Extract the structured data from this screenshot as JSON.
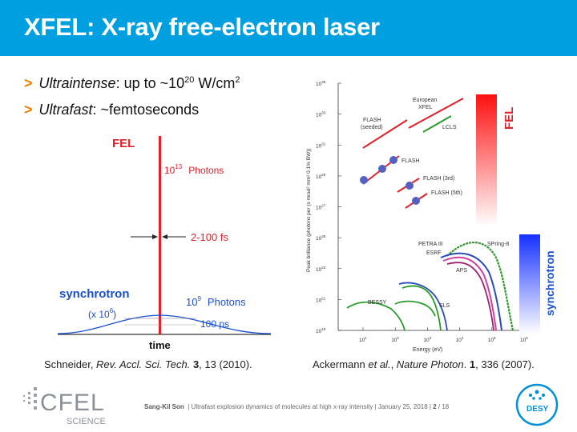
{
  "slide": {
    "title": "XFEL: X-ray free-electron laser",
    "bullets": [
      {
        "term": "Ultraintense",
        "rest_pre": ": up to ~10",
        "exp": "20",
        "rest_post": " W/cm",
        "exp2": "2"
      },
      {
        "term": "Ultrafast",
        "rest_pre": ": ~femtoseconds"
      }
    ],
    "citation_left": {
      "authors": "Schneider, ",
      "journal": "Rev. Accl. Sci. Tech.",
      "volume": " 3",
      "rest": ", 13 (2010)."
    },
    "citation_right": {
      "authors": "Ackermann ",
      "etal": "et al.",
      "sep": ", ",
      "journal": "Nature Photon",
      "rest": ". ",
      "volume": "1",
      "rest2": ", 336 (2007)."
    }
  },
  "pulse_figure": {
    "fel_label": "FEL",
    "fel_photons_base": "10",
    "fel_photons_exp": "13",
    "fel_photons_word": "Photons",
    "duration_fel": "2-100 fs",
    "synchrotron_label": "synchrotron",
    "sync_scale_text": "(x 10",
    "sync_scale_exp": "6",
    "sync_scale_close": ")",
    "sync_photons_base": "10",
    "sync_photons_exp": "9",
    "sync_photons_word": "Photons",
    "duration_sync": "100 ps",
    "x_axis_label": "time",
    "colors": {
      "fel": "#e0202a",
      "sync": "#1a4fd0"
    }
  },
  "brilliance_chart": {
    "ylabel": "Peak brilliance  (photons per (s mrad² mm² 0.1% BW))",
    "xlabel": "Energy (eV)",
    "yticks": [
      {
        "base": "10",
        "exp": "35"
      },
      {
        "base": "10",
        "exp": "33"
      },
      {
        "base": "10",
        "exp": "31"
      },
      {
        "base": "10",
        "exp": "29"
      },
      {
        "base": "10",
        "exp": "27"
      },
      {
        "base": "10",
        "exp": "25"
      },
      {
        "base": "10",
        "exp": "23"
      },
      {
        "base": "10",
        "exp": "21"
      },
      {
        "base": "10",
        "exp": "19"
      }
    ],
    "xticks": [
      {
        "base": "10",
        "exp": "1"
      },
      {
        "base": "10",
        "exp": "2"
      },
      {
        "base": "10",
        "exp": "3"
      },
      {
        "base": "10",
        "exp": "4"
      },
      {
        "base": "10",
        "exp": "5"
      },
      {
        "base": "10",
        "exp": "6"
      }
    ],
    "labels": {
      "european_xfel_1": "European",
      "european_xfel_2": "XFEL",
      "flash_seeded_1": "FLASH",
      "flash_seeded_2": "(seeded)",
      "lcls": "LCLS",
      "flash": "FLASH",
      "flash_3rd": "FLASH (3rd)",
      "flash_5th": "FLASH (5th)",
      "petra_1": "PETRA III",
      "petra_2": "ESRF",
      "spring8": "SPring-8",
      "aps": "APS",
      "bessy": "BESSY",
      "sls": "SLS"
    },
    "fel_bar_label": "FEL",
    "sync_bar_label": "synchrotron",
    "colors": {
      "fel_lines": "#e0202a",
      "lcls": "#2a9a2a",
      "dots": "#5660c0"
    }
  },
  "footer": {
    "author": "Sang-Kil Son",
    "talk": "Ultrafast explosion dynamics of molecules at high x-ray intensity",
    "date": "January 25, 2018",
    "page": "2",
    "total": "18",
    "logo_left_1": "CFEL",
    "logo_left_2": "SCIENCE",
    "logo_right": "DESY"
  }
}
